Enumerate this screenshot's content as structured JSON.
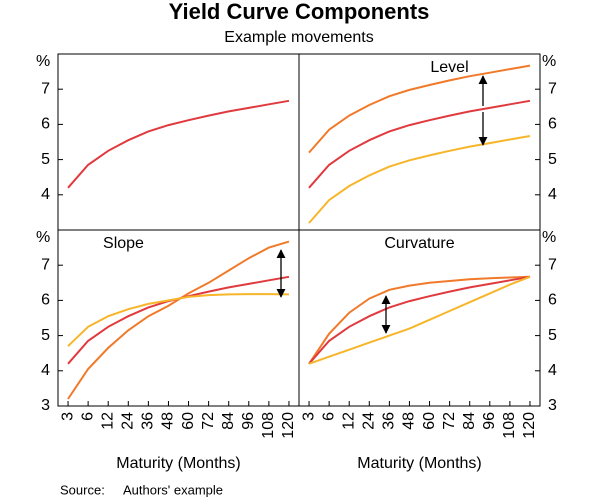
{
  "title": "Yield Curve Components",
  "subtitle": "Example movements",
  "source_label": "Source:",
  "source": "Authors' example",
  "chart_data": [
    {
      "type": "line",
      "y_unit": "%",
      "ylim": [
        3,
        8
      ],
      "yticks": [
        4,
        5,
        6,
        7
      ],
      "series": [
        {
          "color": "#e03a3e",
          "values": [
            4.2,
            4.85,
            5.25,
            5.55,
            5.8,
            5.98,
            6.12,
            6.25,
            6.37,
            6.47,
            6.57,
            6.67
          ]
        }
      ]
    },
    {
      "type": "line",
      "title": "Level",
      "y_unit": "%",
      "ylim": [
        3,
        8
      ],
      "yticks": [
        4,
        5,
        6,
        7
      ],
      "series": [
        {
          "color": "#f07a2a",
          "values": [
            5.2,
            5.85,
            6.25,
            6.55,
            6.8,
            6.98,
            7.12,
            7.25,
            7.37,
            7.47,
            7.57,
            7.67
          ]
        },
        {
          "color": "#e03a3e",
          "values": [
            4.2,
            4.85,
            5.25,
            5.55,
            5.8,
            5.98,
            6.12,
            6.25,
            6.37,
            6.47,
            6.57,
            6.67
          ]
        },
        {
          "color": "#f7b52a",
          "values": [
            3.2,
            3.85,
            4.25,
            4.55,
            4.8,
            4.98,
            5.12,
            5.25,
            5.37,
            5.47,
            5.57,
            5.67
          ]
        }
      ]
    },
    {
      "type": "line",
      "title": "Slope",
      "y_unit": "%",
      "ylim": [
        3,
        8
      ],
      "yticks": [
        3,
        4,
        5,
        6,
        7
      ],
      "x_label": "Maturity (Months)",
      "categories": [
        "3",
        "6",
        "12",
        "24",
        "36",
        "48",
        "60",
        "72",
        "84",
        "96",
        "108",
        "120"
      ],
      "series": [
        {
          "color": "#f07a2a",
          "values": [
            3.2,
            4.05,
            4.65,
            5.15,
            5.55,
            5.85,
            6.2,
            6.5,
            6.85,
            7.2,
            7.5,
            7.67
          ]
        },
        {
          "color": "#e03a3e",
          "values": [
            4.2,
            4.85,
            5.25,
            5.55,
            5.8,
            5.98,
            6.12,
            6.25,
            6.37,
            6.47,
            6.57,
            6.67
          ]
        },
        {
          "color": "#f7b52a",
          "values": [
            4.7,
            5.25,
            5.55,
            5.75,
            5.9,
            6.0,
            6.1,
            6.15,
            6.17,
            6.18,
            6.18,
            6.17
          ]
        }
      ]
    },
    {
      "type": "line",
      "title": "Curvature",
      "y_unit": "%",
      "ylim": [
        3,
        8
      ],
      "yticks": [
        3,
        4,
        5,
        6,
        7
      ],
      "x_label": "Maturity (Months)",
      "categories": [
        "3",
        "6",
        "12",
        "24",
        "36",
        "48",
        "60",
        "72",
        "84",
        "96",
        "108",
        "120"
      ],
      "series": [
        {
          "color": "#f07a2a",
          "values": [
            4.2,
            5.05,
            5.65,
            6.05,
            6.3,
            6.42,
            6.5,
            6.55,
            6.6,
            6.63,
            6.65,
            6.67
          ]
        },
        {
          "color": "#e03a3e",
          "values": [
            4.2,
            4.85,
            5.25,
            5.55,
            5.8,
            5.98,
            6.12,
            6.25,
            6.37,
            6.47,
            6.57,
            6.67
          ]
        },
        {
          "color": "#f7b52a",
          "values": [
            4.2,
            4.4,
            4.6,
            4.8,
            5.0,
            5.2,
            5.45,
            5.7,
            5.95,
            6.2,
            6.45,
            6.67
          ]
        }
      ]
    }
  ]
}
